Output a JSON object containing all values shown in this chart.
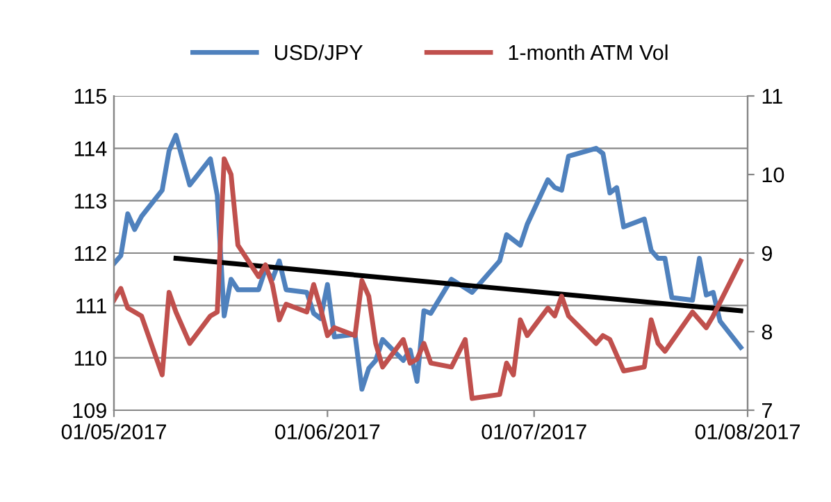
{
  "chart_data": {
    "type": "line",
    "legend": "top",
    "grid": "y",
    "xlim": [
      "2017-05-01",
      "2017-08-01"
    ],
    "xticks": [
      {
        "value": "2017-05-01",
        "label": "01/05/2017"
      },
      {
        "value": "2017-06-01",
        "label": "01/06/2017"
      },
      {
        "value": "2017-07-01",
        "label": "01/07/2017"
      },
      {
        "value": "2017-08-01",
        "label": "01/08/2017"
      }
    ],
    "ylim": [
      109,
      115
    ],
    "yticks": [
      109,
      110,
      111,
      112,
      113,
      114,
      115
    ],
    "y2lim": [
      7,
      11
    ],
    "y2ticks": [
      7,
      8,
      9,
      10,
      11
    ],
    "series": [
      {
        "name": "USD/JPY",
        "color": "#4f81bd",
        "x": [
          "2017-05-01",
          "2017-05-02",
          "2017-05-03",
          "2017-05-04",
          "2017-05-05",
          "2017-05-08",
          "2017-05-09",
          "2017-05-10",
          "2017-05-12",
          "2017-05-15",
          "2017-05-16",
          "2017-05-17",
          "2017-05-18",
          "2017-05-19",
          "2017-05-22",
          "2017-05-23",
          "2017-05-24",
          "2017-05-25",
          "2017-05-26",
          "2017-05-29",
          "2017-05-30",
          "2017-05-31",
          "2017-06-01",
          "2017-06-02",
          "2017-06-05",
          "2017-06-06",
          "2017-06-07",
          "2017-06-08",
          "2017-06-09",
          "2017-06-12",
          "2017-06-13",
          "2017-06-14",
          "2017-06-15",
          "2017-06-16",
          "2017-06-19",
          "2017-06-22",
          "2017-06-26",
          "2017-06-27",
          "2017-06-29",
          "2017-06-30",
          "2017-07-03",
          "2017-07-04",
          "2017-07-05",
          "2017-07-06",
          "2017-07-10",
          "2017-07-11",
          "2017-07-12",
          "2017-07-13",
          "2017-07-14",
          "2017-07-17",
          "2017-07-18",
          "2017-07-19",
          "2017-07-20",
          "2017-07-21",
          "2017-07-24",
          "2017-07-25",
          "2017-07-26",
          "2017-07-27",
          "2017-07-28",
          "2017-07-31"
        ],
        "values": [
          111.8,
          111.95,
          112.75,
          112.45,
          112.7,
          113.2,
          113.95,
          114.25,
          113.3,
          113.8,
          113.1,
          110.8,
          111.5,
          111.3,
          111.3,
          111.7,
          111.5,
          111.85,
          111.3,
          111.25,
          110.85,
          110.75,
          111.4,
          110.4,
          110.45,
          109.4,
          109.8,
          109.95,
          110.35,
          109.95,
          110.15,
          109.55,
          110.9,
          110.85,
          111.5,
          111.25,
          111.85,
          112.35,
          112.15,
          112.55,
          113.4,
          113.25,
          113.2,
          113.85,
          114.0,
          113.9,
          113.15,
          113.25,
          112.5,
          112.65,
          112.05,
          111.9,
          111.9,
          111.15,
          111.1,
          111.9,
          111.2,
          111.25,
          110.7,
          110.2
        ]
      },
      {
        "name": "1-month ATM Vol",
        "color": "#c0504d",
        "axis": "y2",
        "x": [
          "2017-05-01",
          "2017-05-02",
          "2017-05-03",
          "2017-05-05",
          "2017-05-08",
          "2017-05-09",
          "2017-05-10",
          "2017-05-12",
          "2017-05-15",
          "2017-05-16",
          "2017-05-17",
          "2017-05-18",
          "2017-05-19",
          "2017-05-22",
          "2017-05-23",
          "2017-05-24",
          "2017-05-25",
          "2017-05-26",
          "2017-05-29",
          "2017-05-30",
          "2017-05-31",
          "2017-06-01",
          "2017-06-02",
          "2017-06-05",
          "2017-06-06",
          "2017-06-07",
          "2017-06-08",
          "2017-06-09",
          "2017-06-12",
          "2017-06-13",
          "2017-06-14",
          "2017-06-15",
          "2017-06-16",
          "2017-06-19",
          "2017-06-21",
          "2017-06-22",
          "2017-06-26",
          "2017-06-27",
          "2017-06-28",
          "2017-06-29",
          "2017-06-30",
          "2017-07-03",
          "2017-07-04",
          "2017-07-05",
          "2017-07-06",
          "2017-07-10",
          "2017-07-11",
          "2017-07-12",
          "2017-07-14",
          "2017-07-17",
          "2017-07-18",
          "2017-07-19",
          "2017-07-20",
          "2017-07-24",
          "2017-07-26",
          "2017-07-27",
          "2017-07-31"
        ],
        "values": [
          8.4,
          8.55,
          8.3,
          8.2,
          7.45,
          8.5,
          8.25,
          7.85,
          8.2,
          8.25,
          10.2,
          10.0,
          9.1,
          8.7,
          8.85,
          8.6,
          8.15,
          8.35,
          8.25,
          8.6,
          8.3,
          7.95,
          8.05,
          7.95,
          8.65,
          8.45,
          7.85,
          7.55,
          7.9,
          7.6,
          7.65,
          7.85,
          7.6,
          7.55,
          7.9,
          7.15,
          7.2,
          7.6,
          7.45,
          8.15,
          7.95,
          8.3,
          8.2,
          8.45,
          8.2,
          7.85,
          7.95,
          7.9,
          7.5,
          7.55,
          8.15,
          7.85,
          7.75,
          8.25,
          8.05,
          8.2,
          8.9
        ]
      },
      {
        "color": "#000000",
        "x": [
          "2017-05-10",
          "2017-07-31"
        ],
        "values": [
          111.9,
          110.9
        ]
      }
    ]
  }
}
